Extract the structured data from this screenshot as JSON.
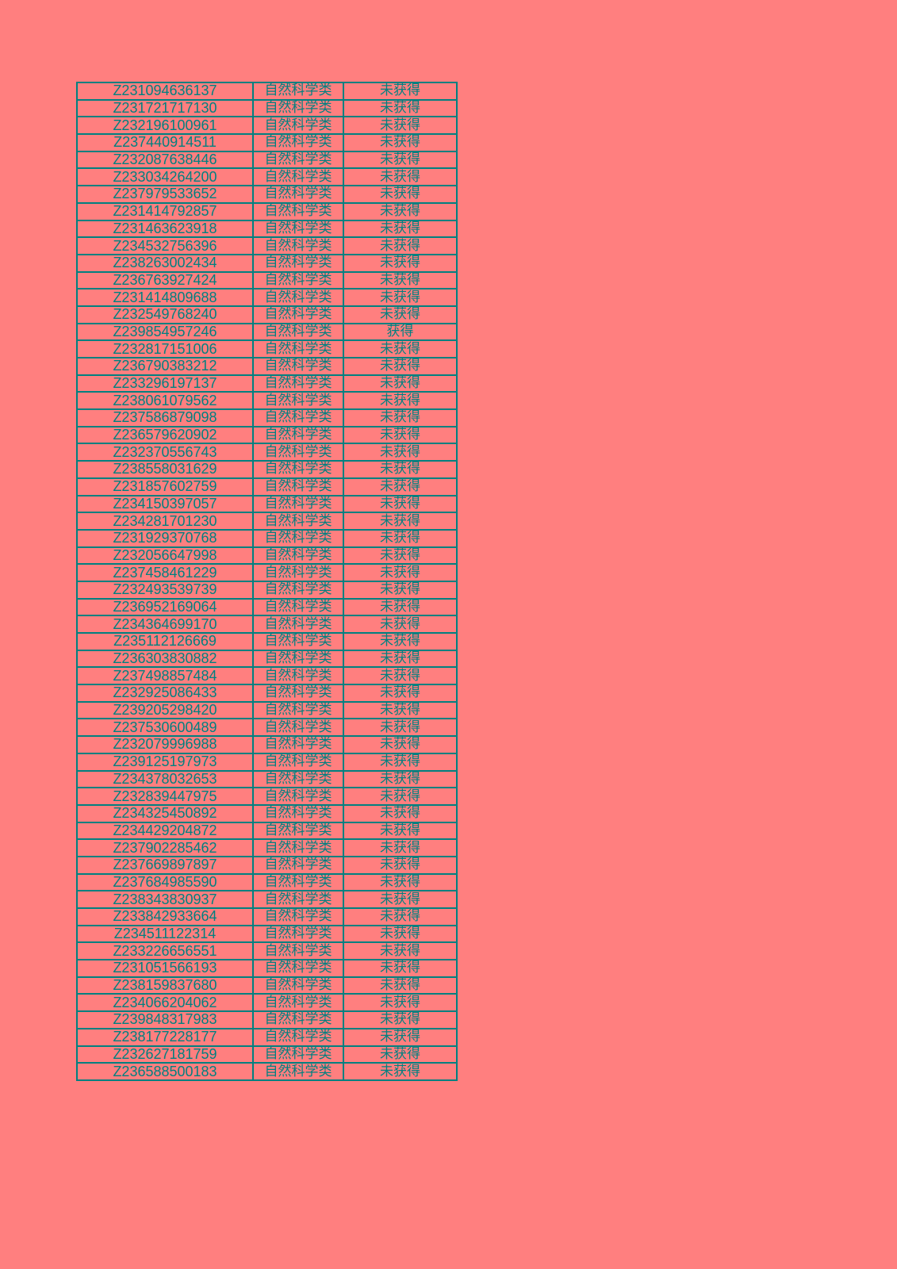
{
  "colors": {
    "background": "#FF7F7F",
    "grid_and_text": "#008080"
  },
  "rows": [
    [
      "Z231094636137",
      "自然科学类",
      "未获得"
    ],
    [
      "Z231721717130",
      "自然科学类",
      "未获得"
    ],
    [
      "Z232196100961",
      "自然科学类",
      "未获得"
    ],
    [
      "Z237440914511",
      "自然科学类",
      "未获得"
    ],
    [
      "Z232087638446",
      "自然科学类",
      "未获得"
    ],
    [
      "Z233034264200",
      "自然科学类",
      "未获得"
    ],
    [
      "Z237979533652",
      "自然科学类",
      "未获得"
    ],
    [
      "Z231414792857",
      "自然科学类",
      "未获得"
    ],
    [
      "Z231463623918",
      "自然科学类",
      "未获得"
    ],
    [
      "Z234532756396",
      "自然科学类",
      "未获得"
    ],
    [
      "Z238263002434",
      "自然科学类",
      "未获得"
    ],
    [
      "Z236763927424",
      "自然科学类",
      "未获得"
    ],
    [
      "Z231414809688",
      "自然科学类",
      "未获得"
    ],
    [
      "Z232549768240",
      "自然科学类",
      "未获得"
    ],
    [
      "Z239854957246",
      "自然科学类",
      "获得"
    ],
    [
      "Z232817151006",
      "自然科学类",
      "未获得"
    ],
    [
      "Z236790383212",
      "自然科学类",
      "未获得"
    ],
    [
      "Z233296197137",
      "自然科学类",
      "未获得"
    ],
    [
      "Z238061079562",
      "自然科学类",
      "未获得"
    ],
    [
      "Z237586879098",
      "自然科学类",
      "未获得"
    ],
    [
      "Z236579620902",
      "自然科学类",
      "未获得"
    ],
    [
      "Z232370556743",
      "自然科学类",
      "未获得"
    ],
    [
      "Z238558031629",
      "自然科学类",
      "未获得"
    ],
    [
      "Z231857602759",
      "自然科学类",
      "未获得"
    ],
    [
      "Z234150397057",
      "自然科学类",
      "未获得"
    ],
    [
      "Z234281701230",
      "自然科学类",
      "未获得"
    ],
    [
      "Z231929370768",
      "自然科学类",
      "未获得"
    ],
    [
      "Z232056647998",
      "自然科学类",
      "未获得"
    ],
    [
      "Z237458461229",
      "自然科学类",
      "未获得"
    ],
    [
      "Z232493539739",
      "自然科学类",
      "未获得"
    ],
    [
      "Z236952169064",
      "自然科学类",
      "未获得"
    ],
    [
      "Z234364699170",
      "自然科学类",
      "未获得"
    ],
    [
      "Z235112126669",
      "自然科学类",
      "未获得"
    ],
    [
      "Z236303830882",
      "自然科学类",
      "未获得"
    ],
    [
      "Z237498857484",
      "自然科学类",
      "未获得"
    ],
    [
      "Z232925086433",
      "自然科学类",
      "未获得"
    ],
    [
      "Z239205298420",
      "自然科学类",
      "未获得"
    ],
    [
      "Z237530600489",
      "自然科学类",
      "未获得"
    ],
    [
      "Z232079996988",
      "自然科学类",
      "未获得"
    ],
    [
      "Z239125197973",
      "自然科学类",
      "未获得"
    ],
    [
      "Z234378032653",
      "自然科学类",
      "未获得"
    ],
    [
      "Z232839447975",
      "自然科学类",
      "未获得"
    ],
    [
      "Z234325450892",
      "自然科学类",
      "未获得"
    ],
    [
      "Z234429204872",
      "自然科学类",
      "未获得"
    ],
    [
      "Z237902285462",
      "自然科学类",
      "未获得"
    ],
    [
      "Z237669897897",
      "自然科学类",
      "未获得"
    ],
    [
      "Z237684985590",
      "自然科学类",
      "未获得"
    ],
    [
      "Z238343830937",
      "自然科学类",
      "未获得"
    ],
    [
      "Z233842933664",
      "自然科学类",
      "未获得"
    ],
    [
      "Z234511122314",
      "自然科学类",
      "未获得"
    ],
    [
      "Z233226656551",
      "自然科学类",
      "未获得"
    ],
    [
      "Z231051566193",
      "自然科学类",
      "未获得"
    ],
    [
      "Z238159837680",
      "自然科学类",
      "未获得"
    ],
    [
      "Z234066204062",
      "自然科学类",
      "未获得"
    ],
    [
      "Z239848317983",
      "自然科学类",
      "未获得"
    ],
    [
      "Z238177228177",
      "自然科学类",
      "未获得"
    ],
    [
      "Z232627181759",
      "自然科学类",
      "未获得"
    ],
    [
      "Z236588500183",
      "自然科学类",
      "未获得"
    ]
  ]
}
